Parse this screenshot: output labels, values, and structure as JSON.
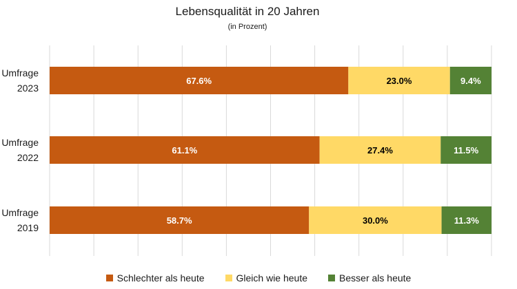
{
  "chart_data": {
    "type": "bar",
    "orientation": "horizontal",
    "stacked": true,
    "title": "Lebensqualität in 20 Jahren",
    "subtitle": "(in Prozent)",
    "categories": [
      [
        "Umfrage",
        "2023"
      ],
      [
        "Umfrage",
        "2022"
      ],
      [
        "Umfrage",
        "2019"
      ]
    ],
    "series": [
      {
        "name": "Schlechter als heute",
        "color": "#C55A11",
        "label_color": "#ffffff",
        "values": [
          67.6,
          61.1,
          58.7
        ],
        "labels": [
          "67.6%",
          "61.1%",
          "58.7%"
        ]
      },
      {
        "name": "Gleich wie heute",
        "color": "#FFD966",
        "label_color": "#000000",
        "values": [
          23.0,
          27.4,
          30.0
        ],
        "labels": [
          "23.0%",
          "27.4%",
          "30.0%"
        ]
      },
      {
        "name": "Besser als heute",
        "color": "#548235",
        "label_color": "#ffffff",
        "values": [
          9.4,
          11.5,
          11.3
        ],
        "labels": [
          "9.4%",
          "11.5%",
          "11.3%"
        ]
      }
    ],
    "xlim": [
      0,
      100
    ],
    "grid": true,
    "legend_position": "bottom"
  }
}
